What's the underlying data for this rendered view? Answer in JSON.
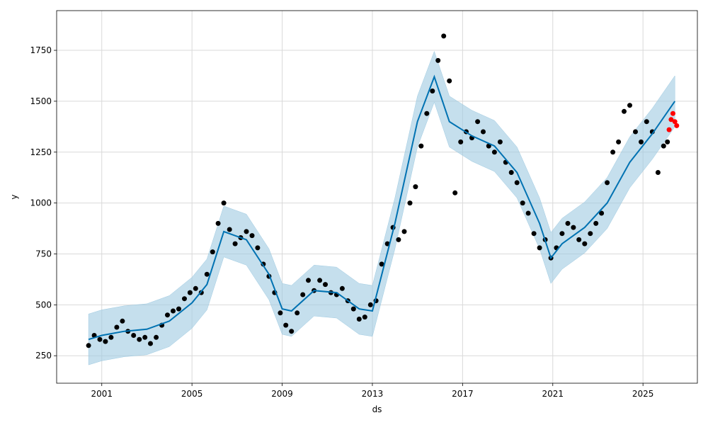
{
  "chart_data": {
    "type": "line",
    "title": "",
    "xlabel": "ds",
    "ylabel": "y",
    "x_range": [
      "1999-01-01",
      "2027-06-01"
    ],
    "ylim": [
      115,
      1945
    ],
    "x_ticks": [
      {
        "label": "2001",
        "date": "2001-01-01"
      },
      {
        "label": "2005",
        "date": "2005-01-01"
      },
      {
        "label": "2009",
        "date": "2009-01-01"
      },
      {
        "label": "2013",
        "date": "2013-01-01"
      },
      {
        "label": "2017",
        "date": "2017-01-01"
      },
      {
        "label": "2021",
        "date": "2021-01-01"
      },
      {
        "label": "2025",
        "date": "2025-01-01"
      }
    ],
    "y_ticks": [
      250,
      500,
      750,
      1000,
      1250,
      1500,
      1750
    ],
    "grid": true,
    "legend": "none",
    "colors": {
      "observed": "#000000",
      "forecast": "#0072B2",
      "interval": "#9ecae1",
      "test_points": "#ff0000"
    },
    "series": [
      {
        "role": "observed",
        "style": "points",
        "x": [
          "2000-06-01",
          "2000-09-01",
          "2000-12-01",
          "2001-03-01",
          "2001-06-01",
          "2001-09-01",
          "2001-12-01",
          "2002-03-01",
          "2002-06-01",
          "2002-09-01",
          "2002-12-01",
          "2003-03-01",
          "2003-06-01",
          "2003-09-01",
          "2003-12-01",
          "2004-03-01",
          "2004-06-01",
          "2004-09-01",
          "2004-12-01",
          "2005-03-01",
          "2005-06-01",
          "2005-09-01",
          "2005-12-01",
          "2006-03-01",
          "2006-06-01",
          "2006-09-01",
          "2006-12-01",
          "2007-03-01",
          "2007-06-01",
          "2007-09-01",
          "2007-12-01",
          "2008-03-01",
          "2008-06-01",
          "2008-09-01",
          "2008-12-01",
          "2009-03-01",
          "2009-06-01",
          "2009-09-01",
          "2009-12-01",
          "2010-03-01",
          "2010-06-01",
          "2010-09-01",
          "2010-12-01",
          "2011-03-01",
          "2011-06-01",
          "2011-09-01",
          "2011-12-01",
          "2012-03-01",
          "2012-06-01",
          "2012-09-01",
          "2012-12-01",
          "2013-03-01",
          "2013-06-01",
          "2013-09-01",
          "2013-12-01",
          "2014-03-01",
          "2014-06-01",
          "2014-09-01",
          "2014-12-01",
          "2015-03-01",
          "2015-06-01",
          "2015-09-01",
          "2015-12-01",
          "2016-03-01",
          "2016-06-01",
          "2016-09-01",
          "2016-12-01",
          "2017-03-01",
          "2017-06-01",
          "2017-09-01",
          "2017-12-01",
          "2018-03-01",
          "2018-06-01",
          "2018-09-01",
          "2018-12-01",
          "2019-03-01",
          "2019-06-01",
          "2019-09-01",
          "2019-12-01",
          "2020-03-01",
          "2020-06-01",
          "2020-09-01",
          "2020-12-01",
          "2021-03-01",
          "2021-06-01",
          "2021-09-01",
          "2021-12-01",
          "2022-03-01",
          "2022-06-01",
          "2022-09-01",
          "2022-12-01",
          "2023-03-01",
          "2023-06-01",
          "2023-09-01",
          "2023-12-01",
          "2024-03-01",
          "2024-06-01",
          "2024-09-01",
          "2024-12-01",
          "2025-03-01",
          "2025-06-01",
          "2025-09-01",
          "2025-12-01",
          "2026-02-01"
        ],
        "y": [
          300,
          350,
          330,
          320,
          340,
          390,
          420,
          370,
          350,
          330,
          340,
          310,
          340,
          400,
          450,
          470,
          480,
          530,
          560,
          580,
          560,
          650,
          760,
          900,
          1000,
          870,
          800,
          830,
          860,
          840,
          780,
          700,
          640,
          560,
          460,
          400,
          370,
          460,
          550,
          620,
          570,
          620,
          600,
          560,
          550,
          580,
          520,
          480,
          430,
          440,
          500,
          520,
          700,
          800,
          880,
          820,
          860,
          1000,
          1080,
          1280,
          1440,
          1550,
          1700,
          1820,
          1600,
          1050,
          1300,
          1350,
          1320,
          1400,
          1350,
          1280,
          1250,
          1300,
          1200,
          1150,
          1100,
          1000,
          950,
          850,
          780,
          820,
          730,
          780,
          850,
          900,
          880,
          820,
          800,
          850,
          900,
          950,
          1100,
          1250,
          1300,
          1450,
          1480,
          1350,
          1300,
          1400,
          1350,
          1150,
          1280,
          1300
        ]
      },
      {
        "role": "forecast",
        "style": "line",
        "x": [
          "2000-06-01",
          "2001-01-01",
          "2002-01-01",
          "2003-01-01",
          "2004-01-01",
          "2005-01-01",
          "2005-09-01",
          "2006-06-01",
          "2007-06-01",
          "2008-06-01",
          "2009-01-01",
          "2009-06-01",
          "2010-06-01",
          "2011-06-01",
          "2012-06-01",
          "2013-01-01",
          "2014-01-01",
          "2015-01-01",
          "2015-10-01",
          "2016-06-01",
          "2017-06-01",
          "2018-06-01",
          "2019-06-01",
          "2020-06-01",
          "2020-12-01",
          "2021-06-01",
          "2022-06-01",
          "2023-06-01",
          "2024-06-01",
          "2025-06-01",
          "2026-06-01"
        ],
        "y": [
          330,
          350,
          370,
          380,
          420,
          510,
          600,
          860,
          820,
          650,
          480,
          470,
          570,
          560,
          480,
          470,
          900,
          1400,
          1620,
          1400,
          1330,
          1280,
          1150,
          900,
          730,
          800,
          880,
          1000,
          1200,
          1340,
          1500
        ]
      },
      {
        "role": "interval_upper",
        "style": "band",
        "x": [
          "2000-06-01",
          "2001-01-01",
          "2002-01-01",
          "2003-01-01",
          "2004-01-01",
          "2005-01-01",
          "2005-09-01",
          "2006-06-01",
          "2007-06-01",
          "2008-06-01",
          "2009-01-01",
          "2009-06-01",
          "2010-06-01",
          "2011-06-01",
          "2012-06-01",
          "2013-01-01",
          "2014-01-01",
          "2015-01-01",
          "2015-10-01",
          "2016-06-01",
          "2017-06-01",
          "2018-06-01",
          "2019-06-01",
          "2020-06-01",
          "2020-12-01",
          "2021-06-01",
          "2022-06-01",
          "2023-06-01",
          "2024-06-01",
          "2025-06-01",
          "2026-06-01"
        ],
        "y": [
          455,
          475,
          495,
          505,
          545,
          635,
          725,
          985,
          945,
          775,
          605,
          595,
          695,
          685,
          605,
          595,
          1025,
          1525,
          1745,
          1525,
          1455,
          1405,
          1275,
          1025,
          855,
          925,
          1005,
          1125,
          1325,
          1465,
          1625
        ]
      },
      {
        "role": "interval_lower",
        "style": "band",
        "x": [
          "2000-06-01",
          "2001-01-01",
          "2002-01-01",
          "2003-01-01",
          "2004-01-01",
          "2005-01-01",
          "2005-09-01",
          "2006-06-01",
          "2007-06-01",
          "2008-06-01",
          "2009-01-01",
          "2009-06-01",
          "2010-06-01",
          "2011-06-01",
          "2012-06-01",
          "2013-01-01",
          "2014-01-01",
          "2015-01-01",
          "2015-10-01",
          "2016-06-01",
          "2017-06-01",
          "2018-06-01",
          "2019-06-01",
          "2020-06-01",
          "2020-12-01",
          "2021-06-01",
          "2022-06-01",
          "2023-06-01",
          "2024-06-01",
          "2025-06-01",
          "2026-06-01"
        ],
        "y": [
          205,
          225,
          245,
          255,
          295,
          385,
          475,
          735,
          695,
          525,
          355,
          345,
          445,
          435,
          355,
          345,
          775,
          1275,
          1495,
          1275,
          1205,
          1155,
          1025,
          775,
          605,
          675,
          755,
          875,
          1075,
          1215,
          1375
        ]
      },
      {
        "role": "test_points",
        "style": "points",
        "x": [
          "2026-03-01",
          "2026-04-01",
          "2026-05-01",
          "2026-06-01",
          "2026-07-01"
        ],
        "y": [
          1360,
          1410,
          1440,
          1400,
          1380
        ]
      }
    ]
  }
}
